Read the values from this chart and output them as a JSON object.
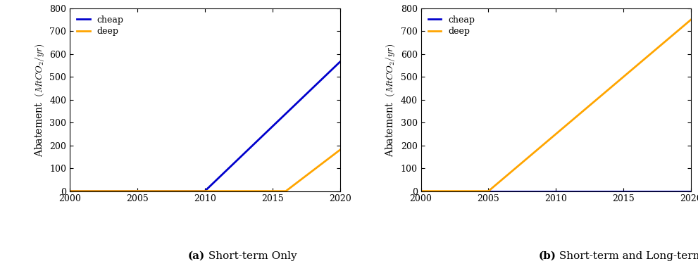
{
  "panel_a": {
    "title_bold": "(a)",
    "title_rest": " Short-term Only",
    "cheap": {
      "x": [
        2000,
        2010,
        2020
      ],
      "y": [
        0,
        0,
        565
      ]
    },
    "deep": {
      "x": [
        2000,
        2016,
        2020
      ],
      "y": [
        0,
        0,
        180
      ]
    }
  },
  "panel_b": {
    "title_bold": "(b)",
    "title_rest": " Short-term and Long-term objs",
    "cheap": {
      "x": [
        2000,
        2020
      ],
      "y": [
        0,
        0
      ]
    },
    "deep": {
      "x": [
        2000,
        2005,
        2020
      ],
      "y": [
        0,
        0,
        750
      ]
    }
  },
  "cheap_color": "#0000cc",
  "deep_color": "#FFA500",
  "xlim": [
    2000,
    2020
  ],
  "ylim": [
    0,
    800
  ],
  "yticks": [
    0,
    100,
    200,
    300,
    400,
    500,
    600,
    700,
    800
  ],
  "xticks": [
    2000,
    2005,
    2010,
    2015,
    2020
  ],
  "ylabel1": "Abatement",
  "ylabel2": "$(MtCO_2/yr)$",
  "linewidth": 2.0,
  "legend_labels": [
    "cheap",
    "deep"
  ],
  "background_color": "#ffffff",
  "caption_fontsize": 11
}
